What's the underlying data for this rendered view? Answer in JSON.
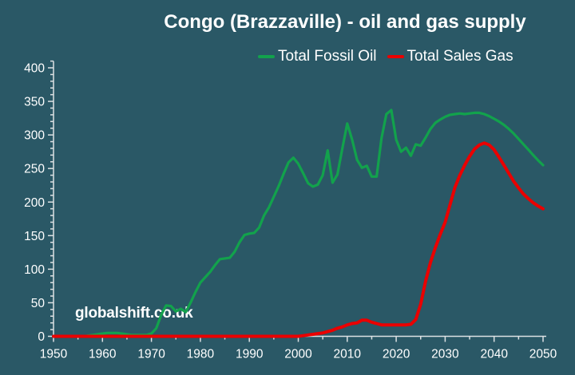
{
  "title": "Congo (Brazzaville) - oil and gas supply",
  "watermark": "globalshift.co.uk",
  "colors": {
    "background": "#2A5866",
    "axis": "#DCE1E3",
    "text": "#FFFFFF",
    "oil_green": "#12A24C",
    "gas_red": "#EA0000"
  },
  "chart_data": {
    "type": "line",
    "title": "Congo (Brazzaville) - oil and gas supply",
    "xlabel": "",
    "ylabel": "",
    "xlim": [
      1950,
      2050
    ],
    "ylim": [
      0,
      400
    ],
    "x_ticks": [
      1950,
      1960,
      1970,
      1980,
      1990,
      2000,
      2010,
      2020,
      2030,
      2040,
      2050
    ],
    "x_minor_step": 5,
    "y_ticks": [
      0,
      50,
      100,
      150,
      200,
      250,
      300,
      350,
      400
    ],
    "y_minor_step": 10,
    "grid": false,
    "legend_position": "top",
    "x_start": 1950,
    "x_step": 1,
    "series": [
      {
        "name": "Total Fossil Oil",
        "color": "#12A24C",
        "values": [
          0,
          0,
          0,
          0,
          0,
          0,
          0,
          1,
          2,
          3,
          4,
          5,
          5,
          5,
          4,
          3,
          2,
          2,
          2,
          2,
          4,
          12,
          32,
          46,
          45,
          37,
          41,
          36,
          50,
          66,
          80,
          88,
          96,
          106,
          115,
          116,
          117,
          126,
          140,
          151,
          153,
          154,
          162,
          180,
          192,
          208,
          224,
          242,
          259,
          266,
          257,
          243,
          228,
          223,
          226,
          240,
          277,
          229,
          241,
          280,
          317,
          293,
          263,
          251,
          254,
          238,
          238,
          295,
          331,
          337,
          293,
          275,
          281,
          269,
          286,
          284,
          296,
          309,
          318,
          323,
          327,
          330,
          331,
          332,
          331,
          332,
          333,
          333,
          331,
          328,
          324,
          320,
          315,
          309,
          302,
          294,
          286,
          278,
          270,
          262,
          255
        ]
      },
      {
        "name": "Total Sales Gas",
        "color": "#EA0000",
        "values": [
          0,
          0,
          0,
          0,
          0,
          0,
          0,
          0,
          0,
          0,
          0,
          0,
          0,
          0,
          0,
          0,
          0,
          0,
          0,
          0,
          0,
          0,
          0,
          0,
          0,
          0,
          0,
          0,
          0,
          0,
          0,
          0,
          0,
          0,
          0,
          0,
          0,
          0,
          0,
          0,
          0,
          0,
          0,
          0,
          0,
          0,
          0,
          0,
          0,
          0,
          0,
          1,
          2,
          3,
          4,
          5,
          7,
          9,
          12,
          14,
          17,
          19,
          20,
          24,
          24,
          21,
          19,
          17,
          17,
          17,
          17,
          17,
          17,
          18,
          25,
          48,
          82,
          110,
          132,
          152,
          170,
          196,
          222,
          240,
          255,
          268,
          279,
          285,
          288,
          285,
          278,
          267,
          255,
          243,
          231,
          221,
          212,
          205,
          199,
          194,
          190
        ]
      }
    ]
  }
}
